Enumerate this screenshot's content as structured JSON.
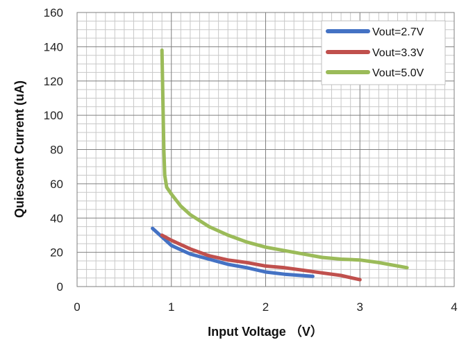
{
  "chart_data": {
    "type": "line",
    "xlabel": "Input Voltage （V）",
    "ylabel": "Quiescent Current (uA)",
    "xlim": [
      0,
      4
    ],
    "ylim": [
      0,
      160
    ],
    "x_ticks": [
      "0",
      "1",
      "2",
      "3",
      "4"
    ],
    "y_ticks": [
      "0",
      "20",
      "40",
      "60",
      "80",
      "100",
      "120",
      "140",
      "160"
    ],
    "grid": true,
    "legend_position": "top-right",
    "series": [
      {
        "name": "Vout=2.7V",
        "color": "#4472C4",
        "x": [
          0.8,
          0.9,
          1.0,
          1.2,
          1.4,
          1.6,
          1.8,
          2.0,
          2.2,
          2.5
        ],
        "y": [
          34,
          29,
          24,
          19,
          16,
          13,
          11,
          8.5,
          7.2,
          6
        ]
      },
      {
        "name": "Vout=3.3V",
        "color": "#C0504D",
        "x": [
          0.9,
          1.0,
          1.2,
          1.4,
          1.6,
          1.8,
          2.0,
          2.2,
          2.4,
          2.6,
          2.8,
          3.0
        ],
        "y": [
          30,
          27,
          22,
          18,
          15.5,
          14,
          12,
          11,
          9.5,
          8,
          6.5,
          4
        ]
      },
      {
        "name": "Vout=5.0V",
        "color": "#9BBB59",
        "x": [
          0.9,
          0.91,
          0.92,
          0.93,
          0.95,
          1.0,
          1.1,
          1.2,
          1.4,
          1.6,
          1.8,
          2.0,
          2.2,
          2.4,
          2.6,
          2.8,
          3.0,
          3.2,
          3.5
        ],
        "y": [
          138,
          110,
          80,
          65,
          58,
          54,
          47,
          42,
          35,
          30,
          26,
          23,
          21,
          19,
          17,
          16,
          15.5,
          14,
          11
        ]
      }
    ]
  }
}
